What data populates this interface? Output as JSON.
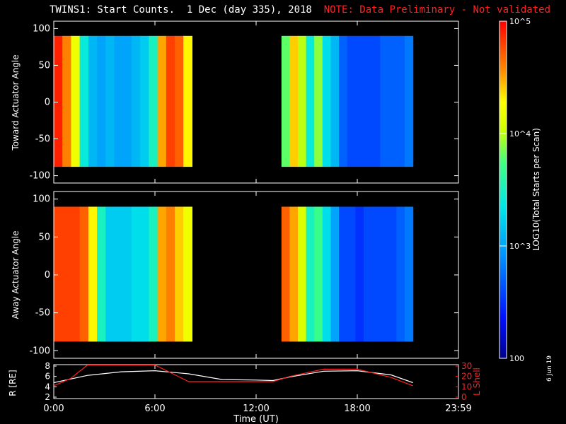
{
  "header": {
    "title": "TWINS1: Start Counts.  1 Dec (day 335), 2018",
    "note": "NOTE: Data Preliminary - Not validated"
  },
  "date_stamp": "6 Jun 19",
  "colorbar": {
    "label": "LOG10(Total Starts per Scan)",
    "ticks": [
      "10^5",
      "10^4",
      "10^3",
      "100"
    ]
  },
  "panels": {
    "top_ylabel": "Toward Actuator Angle",
    "bottom_ylabel": "Away Actuator Angle",
    "angle_ticks": [
      "100",
      "50",
      "0",
      "-50",
      "-100"
    ]
  },
  "orbit": {
    "left_label": "R [RE]",
    "right_label": "L Shell",
    "left_ticks": [
      "8",
      "6",
      "4",
      "2"
    ],
    "right_ticks": [
      "30",
      "20",
      "10",
      "0"
    ]
  },
  "xaxis": {
    "label": "Time (UT)",
    "ticks": [
      "0:00",
      "6:00",
      "12:00",
      "18:00",
      "23:59"
    ]
  },
  "chart_data": {
    "type": "heatmap",
    "title": "TWINS1: Start Counts.  1 Dec (day 335), 2018",
    "xlabel": "Time (UT)",
    "xlim_hours": [
      0,
      24
    ],
    "ylim_angle": [
      -110,
      110
    ],
    "colorscale": "log10 counts, 100 to 100000",
    "data_blocks": [
      {
        "panel": "Toward Actuator Angle",
        "start_h": 0.0,
        "end_h": 8.2,
        "angle_range": [
          -88,
          90
        ],
        "log_counts_profile": [
          4.9,
          4.6,
          4.2,
          3.4,
          3.1,
          3.0,
          3.1,
          3.0,
          3.0,
          3.1,
          3.2,
          3.5,
          4.5,
          4.8,
          4.7,
          4.3
        ]
      },
      {
        "panel": "Toward Actuator Angle",
        "start_h": 13.5,
        "end_h": 21.3,
        "angle_range": [
          -88,
          90
        ],
        "log_counts_profile": [
          3.8,
          4.4,
          4.0,
          3.4,
          3.9,
          3.3,
          3.1,
          2.7,
          2.6,
          2.6,
          2.6,
          2.6,
          2.7,
          2.7,
          2.7,
          2.8
        ]
      },
      {
        "panel": "Away Actuator Angle",
        "start_h": 0.0,
        "end_h": 8.2,
        "angle_range": [
          -88,
          90
        ],
        "log_counts_profile": [
          4.8,
          4.8,
          4.8,
          4.7,
          4.3,
          3.5,
          3.2,
          3.2,
          3.2,
          3.3,
          3.3,
          3.5,
          4.5,
          4.6,
          4.4,
          4.2
        ]
      },
      {
        "panel": "Away Actuator Angle",
        "start_h": 13.5,
        "end_h": 21.3,
        "angle_range": [
          -88,
          90
        ],
        "log_counts_profile": [
          4.7,
          4.5,
          4.1,
          3.5,
          3.7,
          3.3,
          3.0,
          2.6,
          2.6,
          2.5,
          2.6,
          2.6,
          2.6,
          2.6,
          2.7,
          2.8
        ]
      }
    ],
    "orbit_series": [
      {
        "name": "R [RE]",
        "axis": "left",
        "ylim": [
          2,
          8
        ],
        "x": [
          0,
          2,
          4,
          6,
          8,
          10,
          12,
          13,
          14,
          16,
          18,
          20,
          21.3
        ],
        "values": [
          4.8,
          6.2,
          6.9,
          7.1,
          6.5,
          5.4,
          5.3,
          5.2,
          5.9,
          7.0,
          7.1,
          6.3,
          4.8
        ]
      },
      {
        "name": "L Shell",
        "axis": "right",
        "ylim": [
          0,
          30
        ],
        "x": [
          0,
          1,
          2,
          6,
          8,
          10,
          12,
          13,
          14,
          16,
          18,
          20,
          21.3
        ],
        "values": [
          11,
          18,
          31,
          31,
          15,
          15,
          15,
          15,
          20,
          27,
          27,
          19,
          11
        ]
      }
    ]
  }
}
